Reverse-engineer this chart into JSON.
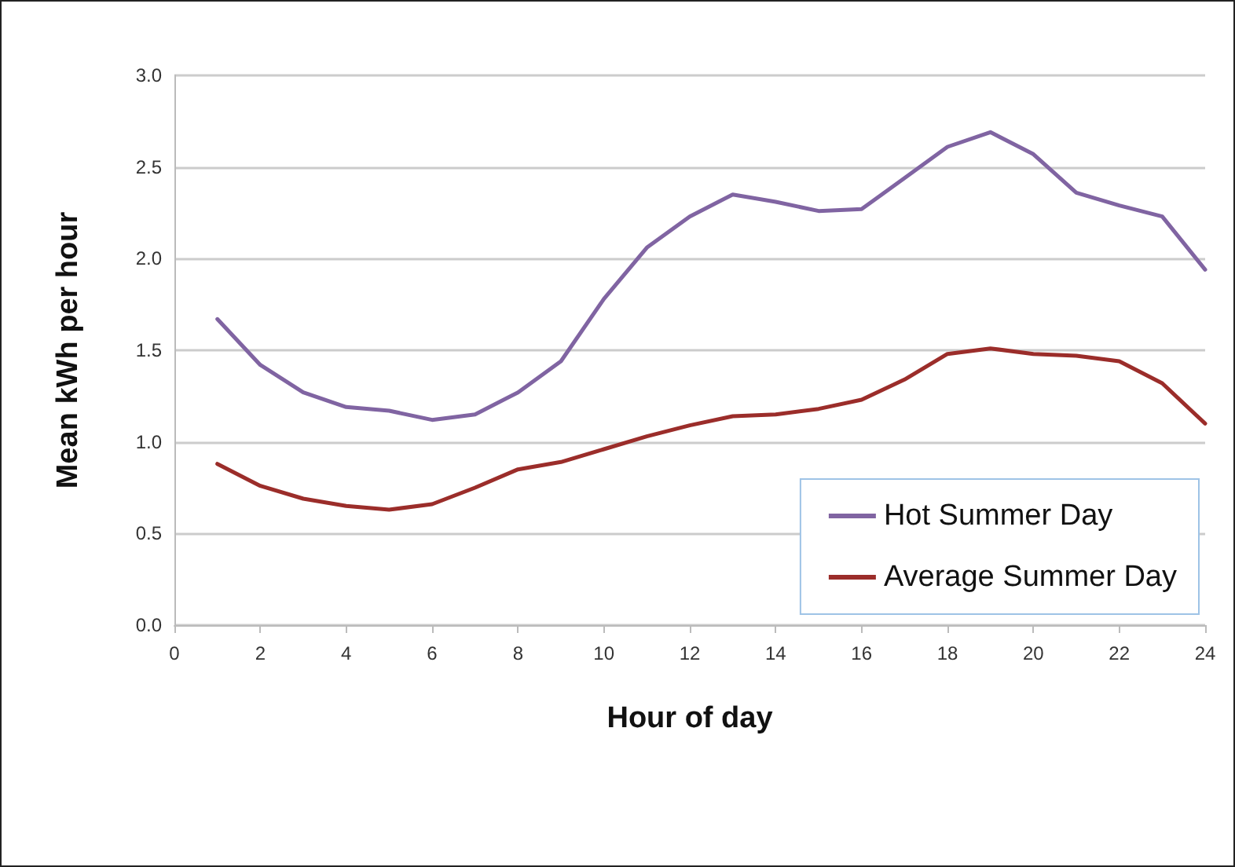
{
  "chart_data": {
    "type": "line",
    "xlabel": "Hour of day",
    "ylabel": "Mean kWh per hour",
    "x": [
      1,
      2,
      3,
      4,
      5,
      6,
      7,
      8,
      9,
      10,
      11,
      12,
      13,
      14,
      15,
      16,
      17,
      18,
      19,
      20,
      21,
      22,
      23,
      24
    ],
    "series": [
      {
        "name": "Hot Summer Day",
        "color": "#8064a2",
        "values": [
          1.67,
          1.42,
          1.27,
          1.19,
          1.17,
          1.12,
          1.15,
          1.27,
          1.44,
          1.78,
          2.06,
          2.23,
          2.35,
          2.31,
          2.26,
          2.27,
          2.44,
          2.61,
          2.69,
          2.57,
          2.36,
          2.29,
          2.23,
          1.94
        ]
      },
      {
        "name": "Average Summer Day",
        "color": "#9b2d2a",
        "values": [
          0.88,
          0.76,
          0.69,
          0.65,
          0.63,
          0.66,
          0.75,
          0.85,
          0.89,
          0.96,
          1.03,
          1.09,
          1.14,
          1.15,
          1.18,
          1.23,
          1.34,
          1.48,
          1.51,
          1.48,
          1.47,
          1.44,
          1.32,
          1.1
        ]
      }
    ],
    "xlim": [
      0,
      24
    ],
    "xticks": [
      0,
      2,
      4,
      6,
      8,
      10,
      12,
      14,
      16,
      18,
      20,
      22,
      24
    ],
    "ylim": [
      0,
      3
    ],
    "yticks": [
      {
        "value": 0,
        "label": "0.0"
      },
      {
        "value": 0.5,
        "label": "0.5"
      },
      {
        "value": 1,
        "label": "1.0"
      },
      {
        "value": 1.5,
        "label": "1.5"
      },
      {
        "value": 2,
        "label": "2.0"
      },
      {
        "value": 2.5,
        "label": "2.5"
      },
      {
        "value": 3,
        "label": "3.0"
      }
    ],
    "grid": "y",
    "legend": "bottom right",
    "marker": "none",
    "line_style": "solid"
  }
}
